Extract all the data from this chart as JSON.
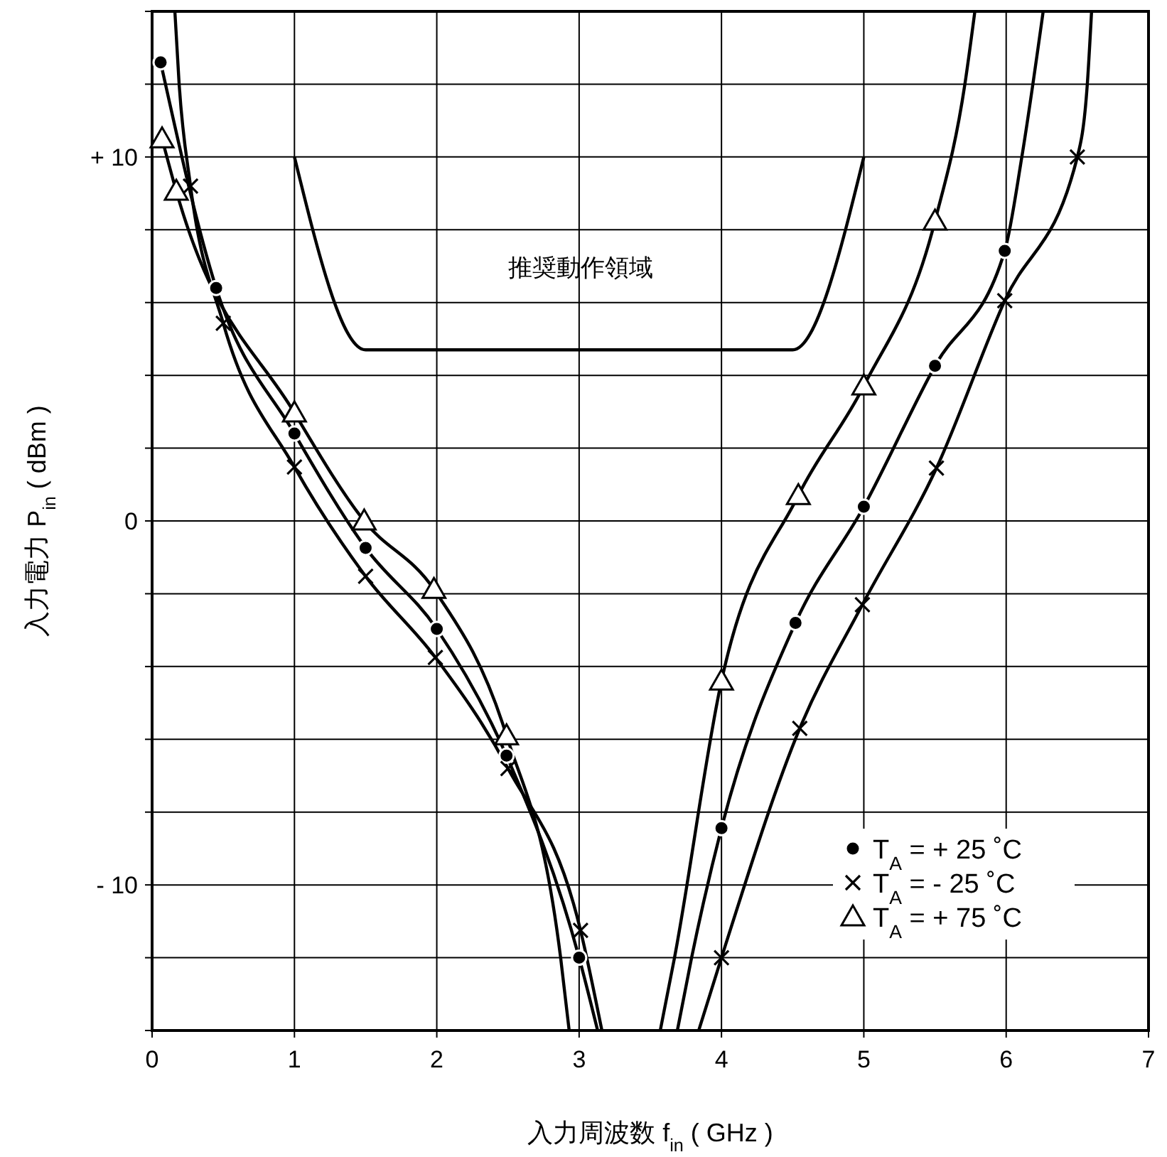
{
  "chart_data": {
    "type": "line",
    "xlabel": "入力周波数 f$_{in}$ ( GHz )",
    "ylabel": "入力電力 P$_{in}$ ( dBm )",
    "xlim": [
      0,
      7
    ],
    "xticks": [
      0,
      1,
      2,
      3,
      4,
      5,
      6,
      7
    ],
    "ylim": [
      -14,
      14
    ],
    "yticks": [
      {
        "value": -14,
        "label": null
      },
      {
        "value": -12,
        "label": null
      },
      {
        "value": -10,
        "label": "- 10"
      },
      {
        "value": -8,
        "label": null
      },
      {
        "value": -6,
        "label": null
      },
      {
        "value": -4,
        "label": null
      },
      {
        "value": -2,
        "label": null
      },
      {
        "value": 0,
        "label": "0"
      },
      {
        "value": 2,
        "label": null
      },
      {
        "value": 4,
        "label": null
      },
      {
        "value": 6,
        "label": null
      },
      {
        "value": 8,
        "label": null
      },
      {
        "value": 10,
        "label": "+ 10"
      },
      {
        "value": 12,
        "label": null
      },
      {
        "value": 14,
        "label": null
      }
    ],
    "grid": true,
    "legend": "bottom right",
    "line_style": "solid",
    "annotations": [
      "推奨動作領域"
    ],
    "series": [
      {
        "color": "#000000",
        "x": [
          1,
          1.5,
          4.5,
          5
        ],
        "values": [
          10,
          4.7,
          4.7,
          10
        ]
      },
      {
        "color": "#000000",
        "x": [
          0.06,
          0.45,
          1.0,
          1.5,
          2.0,
          2.49,
          3.0,
          3.13
        ],
        "values": [
          12.6,
          6.4,
          2.4,
          -0.74,
          -2.97,
          -6.45,
          -12.0,
          -14
        ]
      },
      {
        "color": "#000000",
        "x": [
          3.69,
          3.79,
          4.0,
          4.52,
          5.0,
          5.5,
          5.99,
          6.11,
          6.26
        ],
        "values": [
          -14,
          -12,
          -8.44,
          -2.8,
          0.39,
          4.26,
          7.42,
          10,
          14
        ]
      },
      {
        "color": "#000000",
        "x": [
          0.16,
          0.19,
          0.27,
          0.5,
          1.0,
          1.5,
          1.99,
          2.5,
          3.01,
          3.16
        ],
        "values": [
          14,
          12,
          9.2,
          5.43,
          1.48,
          -1.52,
          -3.75,
          -6.8,
          -11.25,
          -14
        ]
      },
      {
        "color": "#000000",
        "x": [
          3.84,
          4.0,
          4.55,
          4.99,
          5.51,
          5.99,
          6.5,
          6.57,
          6.6
        ],
        "values": [
          -14,
          -12,
          -5.7,
          -2.3,
          1.45,
          6.05,
          10,
          12,
          14
        ]
      },
      {
        "color": "#000000",
        "x": [
          0.07,
          0.17,
          1.0,
          1.49,
          1.98,
          2.49,
          2.87,
          2.93
        ],
        "values": [
          10.5,
          9.06,
          2.97,
          0,
          -1.88,
          -5.9,
          -12,
          -14
        ]
      },
      {
        "color": "#000000",
        "x": [
          3.57,
          3.67,
          4.0,
          4.54,
          5.0,
          5.5,
          5.71,
          5.78
        ],
        "values": [
          -14,
          -12,
          -4.4,
          0.7,
          3.71,
          8.24,
          12,
          14
        ]
      },
      {
        "type": "scatter",
        "name": "T$_{A}$ = + 25 ˚C",
        "marker": "circle",
        "color": "#000000",
        "x": [
          0.06,
          0.45,
          1.0,
          1.5,
          2.0,
          2.49,
          3.0,
          4.0,
          4.52,
          5.0,
          5.5,
          5.99
        ],
        "values": [
          12.6,
          6.4,
          2.4,
          -0.74,
          -2.97,
          -6.45,
          -12.0,
          -8.44,
          -2.8,
          0.39,
          4.26,
          7.42
        ]
      },
      {
        "type": "scatter",
        "name": "T$_{A}$ = - 25 ˚C",
        "marker": "cross",
        "color": "#000000",
        "x": [
          0.27,
          0.5,
          1.0,
          1.5,
          1.99,
          2.5,
          3.01,
          4.0,
          4.55,
          4.99,
          5.51,
          5.99,
          6.5
        ],
        "values": [
          9.2,
          5.43,
          1.48,
          -1.52,
          -3.75,
          -6.8,
          -11.25,
          -12,
          -5.7,
          -2.3,
          1.45,
          6.05,
          10
        ]
      },
      {
        "type": "scatter",
        "name": "T$_{A}$ = + 75 ˚C",
        "marker": "triangle",
        "color": "#000000",
        "x": [
          0.07,
          0.17,
          1.0,
          1.49,
          1.98,
          2.49,
          4.0,
          4.54,
          5.0,
          5.5
        ],
        "values": [
          10.5,
          9.06,
          2.97,
          0,
          -1.88,
          -5.9,
          -4.4,
          0.7,
          3.71,
          8.24
        ]
      }
    ]
  }
}
